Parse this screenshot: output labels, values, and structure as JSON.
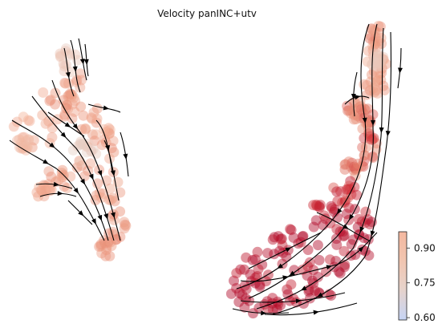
{
  "chart_data": {
    "type": "scatter",
    "title": "Velocity panINC+utv",
    "xlabel": "",
    "ylabel": "",
    "grid": false,
    "axes_visible": false,
    "overlay": "velocity stream arrows (black)",
    "colormap": "coolwarm",
    "colorbar": {
      "position": "right",
      "range": [
        0.59,
        0.97
      ],
      "ticks": [
        0.6,
        0.75,
        0.9
      ],
      "tick_labels": [
        "0.60",
        "0.75",
        "0.90"
      ]
    },
    "clusters": [
      {
        "name": "left",
        "value_range": [
          0.6,
          0.93
        ]
      },
      {
        "name": "right",
        "value_range": [
          0.6,
          1.0
        ]
      }
    ]
  },
  "colors": {
    "low": "#3b4cc0",
    "mid": "#dddddd",
    "high": "#b40426",
    "arrows": "#000000"
  }
}
